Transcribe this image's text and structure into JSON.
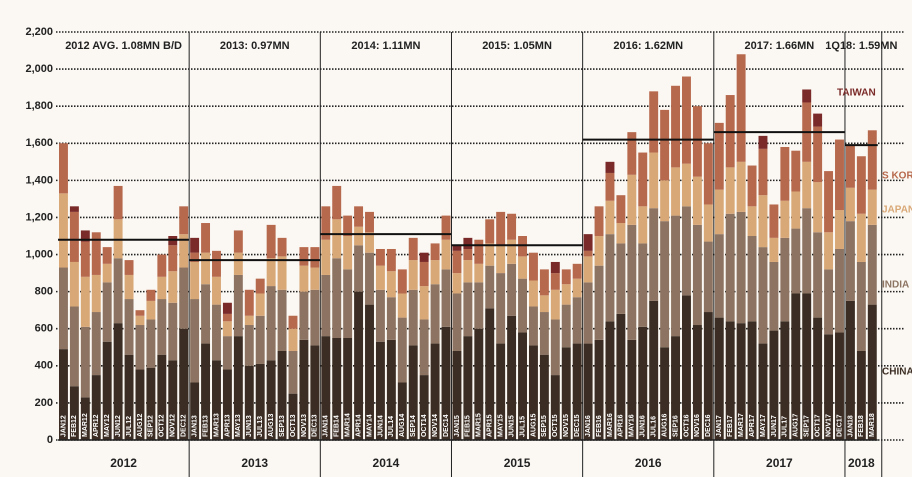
{
  "chart_data": {
    "type": "stacked_bar",
    "categories": [
      "JAN12",
      "FEB12",
      "MAR12",
      "APR12",
      "MAY12",
      "JUN12",
      "JUL12",
      "AUG12",
      "SEP12",
      "OCT12",
      "NOV12",
      "DEC12",
      "JAN13",
      "FEB13",
      "MAR13",
      "APR13",
      "MAY13",
      "JUN13",
      "JUL13",
      "AUG13",
      "SEP13",
      "OCT13",
      "NOV13",
      "DEC13",
      "JAN14",
      "FEB14",
      "MAR14",
      "APR14",
      "MAY14",
      "JUN14",
      "JUL14",
      "AUG14",
      "SEP14",
      "OCT14",
      "NOV14",
      "DEC14",
      "JAN15",
      "FEB15",
      "MAR15",
      "APR15",
      "MAY15",
      "JUN15",
      "JUL15",
      "AUG15",
      "SEP15",
      "OCT15",
      "NOV15",
      "DEC15",
      "JAN16",
      "FEB16",
      "MAR16",
      "APR16",
      "MAY16",
      "JUN16",
      "JUL16",
      "AUG16",
      "SEP16",
      "OCT16",
      "NOV16",
      "DEC16",
      "JAN17",
      "FEB17",
      "MAR17",
      "APR17",
      "MAY17",
      "JUN17",
      "JUL17",
      "AUG17",
      "SEP17",
      "OCT17",
      "NOV17",
      "DEC17",
      "JAN18",
      "FEB18",
      "MAR18"
    ],
    "years": [
      "2012",
      "2013",
      "2014",
      "2015",
      "2016",
      "2017",
      "2018"
    ],
    "annotations": [
      {
        "text": "2012 AVG. 1.08MN B/D",
        "value": 1080
      },
      {
        "text": "2013: 0.97MN",
        "value": 970
      },
      {
        "text": "2014: 1.11MN",
        "value": 1110
      },
      {
        "text": "2015: 1.05MN",
        "value": 1050
      },
      {
        "text": "2016: 1.62MN",
        "value": 1620
      },
      {
        "text": "2017: 1.66MN",
        "value": 1660
      },
      {
        "text": "1Q18: 1.59MN",
        "value": 1590
      }
    ],
    "series": [
      {
        "name": "CHINA",
        "color": "#3b2d23",
        "values": [
          490,
          290,
          230,
          350,
          530,
          630,
          460,
          380,
          390,
          460,
          430,
          600,
          310,
          520,
          430,
          380,
          560,
          400,
          410,
          430,
          480,
          250,
          540,
          510,
          560,
          550,
          550,
          800,
          730,
          530,
          540,
          310,
          510,
          350,
          520,
          610,
          480,
          560,
          600,
          710,
          520,
          670,
          580,
          510,
          460,
          350,
          500,
          520,
          520,
          540,
          640,
          680,
          540,
          610,
          750,
          500,
          560,
          780,
          620,
          690,
          660,
          640,
          630,
          640,
          520,
          590,
          640,
          790,
          790,
          660,
          570,
          580,
          750,
          480,
          730
        ]
      },
      {
        "name": "INDIA",
        "color": "#8d7462",
        "values": [
          440,
          430,
          380,
          340,
          320,
          350,
          300,
          240,
          260,
          300,
          310,
          330,
          450,
          320,
          300,
          180,
          330,
          220,
          260,
          400,
          330,
          230,
          260,
          300,
          330,
          430,
          370,
          250,
          280,
          280,
          230,
          350,
          300,
          300,
          320,
          310,
          310,
          290,
          250,
          230,
          380,
          280,
          290,
          210,
          230,
          300,
          230,
          250,
          330,
          400,
          470,
          380,
          620,
          450,
          500,
          680,
          650,
          480,
          540,
          380,
          450,
          580,
          600,
          460,
          520,
          370,
          450,
          350,
          460,
          460,
          350,
          450,
          430,
          480,
          430
        ]
      },
      {
        "name": "JAPAN",
        "color": "#d9a877",
        "values": [
          400,
          240,
          270,
          200,
          100,
          210,
          130,
          50,
          100,
          120,
          170,
          180,
          200,
          170,
          150,
          80,
          120,
          50,
          120,
          150,
          180,
          120,
          140,
          120,
          190,
          210,
          180,
          100,
          110,
          130,
          140,
          130,
          160,
          180,
          130,
          160,
          110,
          120,
          100,
          120,
          150,
          130,
          120,
          140,
          90,
          160,
          110,
          100,
          140,
          160,
          180,
          110,
          270,
          200,
          300,
          220,
          260,
          230,
          260,
          200,
          240,
          250,
          270,
          160,
          280,
          130,
          200,
          200,
          250,
          270,
          200,
          210,
          180,
          260,
          190
        ]
      },
      {
        "name": "S KORE",
        "color": "#b7694d",
        "values": [
          270,
          270,
          190,
          230,
          90,
          180,
          80,
          30,
          60,
          120,
          140,
          150,
          50,
          160,
          140,
          40,
          120,
          140,
          80,
          180,
          100,
          70,
          100,
          110,
          180,
          180,
          110,
          110,
          110,
          90,
          120,
          130,
          120,
          130,
          90,
          130,
          120,
          60,
          130,
          130,
          180,
          140,
          110,
          150,
          140,
          90,
          80,
          80,
          30,
          160,
          150,
          150,
          230,
          290,
          330,
          380,
          440,
          470,
          380,
          330,
          360,
          390,
          580,
          220,
          250,
          180,
          290,
          220,
          320,
          300,
          330,
          380,
          230,
          310,
          320
        ]
      },
      {
        "name": "TAIWAN",
        "color": "#7a2a28",
        "values": [
          0,
          30,
          60,
          0,
          0,
          0,
          0,
          0,
          0,
          0,
          50,
          0,
          80,
          0,
          0,
          60,
          0,
          0,
          0,
          0,
          0,
          0,
          0,
          0,
          0,
          0,
          0,
          0,
          0,
          0,
          0,
          0,
          0,
          50,
          0,
          0,
          30,
          60,
          0,
          0,
          0,
          0,
          0,
          0,
          0,
          60,
          0,
          0,
          90,
          0,
          60,
          0,
          0,
          0,
          0,
          0,
          0,
          0,
          0,
          0,
          0,
          0,
          0,
          0,
          70,
          0,
          0,
          0,
          70,
          70,
          0,
          0,
          0,
          0,
          0
        ]
      }
    ],
    "ylim": [
      0,
      2200
    ],
    "yticks": [
      0,
      200,
      400,
      600,
      800,
      {
        "value": 1000,
        "label": "1,000"
      },
      {
        "value": 1200,
        "label": "1,200"
      },
      {
        "value": 1400,
        "label": "1,400"
      },
      {
        "value": 1600,
        "label": "1,600"
      },
      {
        "value": 1800,
        "label": "1,800"
      },
      {
        "value": 2000,
        "label": "2,000"
      },
      {
        "value": 2200,
        "label": "2,200"
      }
    ],
    "grid": true
  }
}
